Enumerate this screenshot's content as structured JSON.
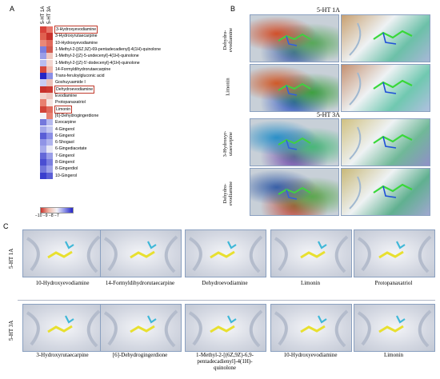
{
  "panels": {
    "a": "A",
    "b": "B",
    "c": "C"
  },
  "heatmap": {
    "columns": [
      "5-HT 1A",
      "5-HT 3A"
    ],
    "rows": [
      {
        "name": "3-Hydroxyevodiamine",
        "boxed": true,
        "colors": [
          "#d8423a",
          "#e8766a"
        ]
      },
      {
        "name": "3-Hydroxyrutaecarpine",
        "boxed": false,
        "colors": [
          "#e06050",
          "#c8312b"
        ]
      },
      {
        "name": "10-Hydroxyevodiamine",
        "boxed": false,
        "colors": [
          "#e88878",
          "#e06a5c"
        ]
      },
      {
        "name": "1-Methyl-2-[(6Z,9Z)-69-pentadecadienyl]-4(1H)-quinolone",
        "boxed": false,
        "colors": [
          "#7a7ede",
          "#d05a50"
        ]
      },
      {
        "name": "1-Methyl-2-[(Z)-5-undecenyl]-4(1H)-quinolone",
        "boxed": false,
        "colors": [
          "#9a9ee8",
          "#f0c8c0"
        ]
      },
      {
        "name": "1-Methyl-2-[(Z)-5'-dodecenyl]-4(1H)-quinolone",
        "boxed": false,
        "colors": [
          "#b8bcf0",
          "#f2d6d0"
        ]
      },
      {
        "name": "14-Formyldihydrorutaecarpine",
        "boxed": false,
        "colors": [
          "#d5483e",
          "#f0b8ae"
        ]
      },
      {
        "name": "Trans-feruloylgluconic acid",
        "boxed": false,
        "colors": [
          "#2424c6",
          "#8a8ee6"
        ]
      },
      {
        "name": "Goshuyuamide I",
        "boxed": false,
        "colors": [
          "#c8ccf2",
          "#ecc0b8"
        ]
      },
      {
        "name": "Dehydroevodiamine",
        "boxed": true,
        "colors": [
          "#c8312b",
          "#cc3a32"
        ]
      },
      {
        "name": "Evodiamine",
        "boxed": false,
        "colors": [
          "#f2d4cc",
          "#eec4bc"
        ]
      },
      {
        "name": "Protopanaxatriol",
        "boxed": false,
        "colors": [
          "#e88070",
          "#f4e4e0"
        ]
      },
      {
        "name": "Limonin",
        "boxed": true,
        "colors": [
          "#d24438",
          "#e06a5c"
        ]
      },
      {
        "name": "[6]-Dehydrogingerdione",
        "boxed": false,
        "colors": [
          "#f4f4f8",
          "#e88072"
        ]
      },
      {
        "name": "Evocarpine",
        "boxed": false,
        "colors": [
          "#7478dc",
          "#b6baf0"
        ]
      },
      {
        "name": "4-Gingerol",
        "boxed": false,
        "colors": [
          "#a4a8ea",
          "#c4c8f2"
        ]
      },
      {
        "name": "6-Gingerol",
        "boxed": false,
        "colors": [
          "#5a5ed6",
          "#8a8ee6"
        ]
      },
      {
        "name": "6-Shogaol",
        "boxed": false,
        "colors": [
          "#9094e6",
          "#b0b4ee"
        ]
      },
      {
        "name": "6-Gingediacetate",
        "boxed": false,
        "colors": [
          "#a8acec",
          "#e8e8f6"
        ]
      },
      {
        "name": "7-Gingerol",
        "boxed": false,
        "colors": [
          "#6468d8",
          "#9a9ee8"
        ]
      },
      {
        "name": "8-Gingerol",
        "boxed": false,
        "colors": [
          "#4a4ed2",
          "#7a7ee0"
        ]
      },
      {
        "name": "8-Gingerdiol",
        "boxed": false,
        "colors": [
          "#7276dc",
          "#9ea2ea"
        ]
      },
      {
        "name": "10-Gingerol",
        "boxed": false,
        "colors": [
          "#3a3ece",
          "#5a5ed6"
        ]
      }
    ],
    "legend_ticks": "−10 −9 −8 −7"
  },
  "panel_b": {
    "title_1a": "5-HT 1A",
    "title_3a": "5-HT 3A",
    "rows": [
      {
        "label": "Dehydro-\nevodiamine",
        "surface": [
          "#d2502a",
          "#58a858",
          "#3a5aa8"
        ],
        "ribbon": [
          "#c8a070",
          "#6cc0a8",
          "#a8b8d8"
        ]
      },
      {
        "label": "Limonin",
        "surface": [
          "#d05a28",
          "#3fa040",
          "#2a50c0"
        ],
        "ribbon": [
          "#c49070",
          "#70c8b0",
          "#b0c0e0"
        ]
      },
      {
        "label": "3-Hydroxyr-\nutaecarpine",
        "surface": [
          "#2a90c8",
          "#48b878",
          "#6a40a8"
        ],
        "ribbon": [
          "#d0c080",
          "#70b898",
          "#9090c8"
        ]
      },
      {
        "label": "Dehydro-\nevodiamine",
        "surface": [
          "#3860a8",
          "#5aa850",
          "#c04030"
        ],
        "ribbon": [
          "#c8b878",
          "#60b090",
          "#a0a8d0"
        ]
      }
    ]
  },
  "panel_c": {
    "row_labels": [
      "5-HT 1A",
      "5-HT 3A"
    ],
    "row1": [
      "10-Hydroxyevodiamine",
      "14-Formyldihydrorutaecarpine",
      "Dehydroevodiamine",
      "Limonin",
      "Protopanaxatriol"
    ],
    "row2": [
      "3-Hydroxyrutaecarpine",
      "[6]-Dehydrogingerdione",
      "1-Methyl-2-[(6Z,9Z)-6,9-\npentadecadienyl]-4(1H)-\nquinolone",
      "10-Hydroxyevodiamine",
      "Limonin"
    ]
  },
  "colors": {
    "heat_high": "#c8312b",
    "heat_low": "#2424c6",
    "box": "#c0392b",
    "ligand": "#e8e030",
    "residue": "#40b8d8"
  }
}
